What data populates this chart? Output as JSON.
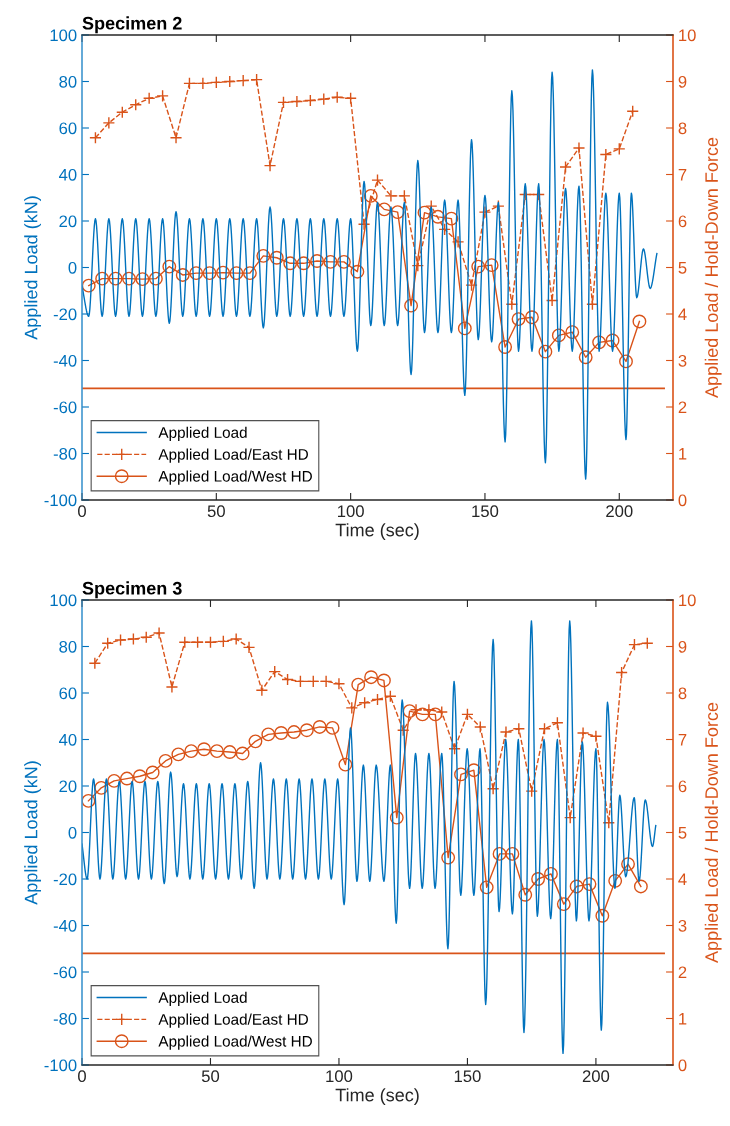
{
  "chart_data": [
    {
      "type": "line",
      "title": "Specimen 2",
      "xlabel": "Time (sec)",
      "ylabel": "Applied Load (kN)",
      "y2label": "Applied Load / Hold-Down Force",
      "xlim": [
        0,
        220
      ],
      "xticks": [
        0,
        50,
        100,
        150,
        200
      ],
      "ylim": [
        -100,
        100
      ],
      "yticks": [
        -100,
        -80,
        -60,
        -40,
        -20,
        0,
        20,
        40,
        60,
        80,
        100
      ],
      "y2lim": [
        0,
        10
      ],
      "y2ticks": [
        0,
        1,
        2,
        3,
        4,
        5,
        6,
        7,
        8,
        9,
        10
      ],
      "grid": false,
      "legend": "bottom left",
      "ref_lines": [
        {
          "axis": "y2",
          "value": 2.4,
          "color": "#d95319"
        }
      ],
      "series": [
        {
          "name": "Applied Load",
          "color": "#0072bd",
          "marker": "none",
          "line_style": "solid",
          "x": [
            0,
            2.5,
            5,
            7.5,
            10,
            12.5,
            15,
            17.5,
            20,
            22.5,
            25,
            27.5,
            30,
            32.5,
            35,
            37.5,
            40,
            42.5,
            45,
            47.5,
            50,
            52.5,
            55,
            57.5,
            60,
            62.5,
            65,
            67.5,
            70,
            72.5,
            75,
            77.5,
            80,
            82.5,
            85,
            87.5,
            90,
            92.5,
            95,
            97.5,
            100,
            102.5,
            105,
            107.5,
            110,
            112.5,
            115,
            117.5,
            120,
            122.5,
            125,
            127.5,
            130,
            132.5,
            135,
            137.5,
            140,
            142.5,
            145,
            147.5,
            150,
            152.5,
            155,
            157.5,
            160,
            162.5,
            165,
            167.5,
            170,
            172.5,
            175,
            177.5,
            180,
            182.5,
            185,
            187.5,
            190,
            192.5,
            195,
            197.5,
            200,
            202.5,
            204.5,
            206.5,
            209,
            211.5,
            214
          ],
          "values": [
            -8,
            -21,
            21,
            -21,
            21,
            -21,
            21,
            -21,
            21,
            -21,
            21,
            -21,
            21,
            -24,
            24,
            -21,
            21,
            -21,
            21,
            -21,
            21,
            -21,
            21,
            -21,
            21,
            -21,
            21,
            -26,
            26,
            -21,
            21,
            -21,
            21,
            -21,
            21,
            -21,
            21,
            -21,
            21,
            -21,
            21,
            -36,
            37,
            -25,
            28,
            -25,
            26,
            -25,
            28,
            -46,
            46,
            -28,
            26,
            -28,
            29,
            -28,
            29,
            -55,
            55,
            -31,
            31,
            -32,
            28,
            -75,
            76,
            -36,
            36,
            -36,
            36,
            -84,
            84,
            -36,
            34,
            -36,
            35,
            -91,
            85,
            -36,
            32,
            -36,
            32,
            -74,
            32,
            -13,
            8,
            -9,
            6
          ]
        },
        {
          "name": "Applied Load/East HD",
          "color": "#d95319",
          "axis": "y2",
          "marker": "cross",
          "line_style": "dashed",
          "x": [
            5,
            10,
            15,
            20,
            25,
            30,
            35,
            40,
            45,
            50,
            55,
            60,
            65,
            70,
            75,
            80,
            85,
            90,
            95,
            100,
            105,
            110,
            115,
            120,
            125,
            130,
            135,
            140,
            145,
            150,
            155,
            160,
            165,
            170,
            175,
            180,
            185,
            190,
            195,
            200,
            205
          ],
          "values": [
            7.79,
            8.11,
            8.34,
            8.5,
            8.64,
            8.69,
            7.79,
            8.96,
            8.96,
            8.98,
            9.0,
            9.02,
            9.04,
            7.19,
            8.55,
            8.57,
            8.59,
            8.62,
            8.66,
            8.64,
            5.93,
            6.88,
            6.54,
            6.54,
            5.04,
            6.32,
            5.82,
            5.55,
            4.62,
            6.19,
            6.32,
            4.21,
            6.57,
            6.57,
            4.29,
            7.16,
            7.57,
            4.21,
            7.43,
            7.55,
            8.36
          ]
        },
        {
          "name": "Applied Load/West HD",
          "color": "#d95319",
          "axis": "y2",
          "marker": "circle",
          "line_style": "solid",
          "x": [
            2.5,
            7.5,
            12.5,
            17.5,
            22.5,
            27.5,
            32.5,
            37.5,
            42.5,
            47.5,
            52.5,
            57.5,
            62.5,
            67.5,
            72.5,
            77.5,
            82.5,
            87.5,
            92.5,
            97.5,
            102.5,
            107.5,
            112.5,
            117.5,
            122.5,
            127.5,
            132.5,
            137.5,
            142.5,
            147.5,
            152.5,
            157.5,
            162.5,
            167.5,
            172.5,
            177.5,
            182.5,
            187.5,
            192.5,
            197.5,
            202.5,
            207.5
          ],
          "values": [
            4.61,
            4.76,
            4.76,
            4.76,
            4.75,
            4.76,
            5.02,
            4.84,
            4.88,
            4.88,
            4.89,
            4.88,
            4.88,
            5.25,
            5.21,
            5.09,
            5.09,
            5.14,
            5.12,
            5.12,
            4.91,
            6.54,
            6.25,
            6.19,
            4.18,
            6.18,
            6.09,
            6.05,
            3.69,
            5.02,
            5.05,
            3.29,
            3.89,
            3.93,
            3.19,
            3.54,
            3.61,
            3.07,
            3.39,
            3.43,
            2.98,
            3.84
          ]
        }
      ]
    },
    {
      "type": "line",
      "title": "Specimen 3",
      "xlabel": "Time (sec)",
      "ylabel": "Applied Load (kN)",
      "y2label": "Applied Load / Hold-Down Force",
      "xlim": [
        0,
        230
      ],
      "xticks": [
        0,
        50,
        100,
        150,
        200
      ],
      "ylim": [
        -100,
        100
      ],
      "yticks": [
        -100,
        -80,
        -60,
        -40,
        -20,
        0,
        20,
        40,
        60,
        80,
        100
      ],
      "y2lim": [
        0,
        10
      ],
      "y2ticks": [
        0,
        1,
        2,
        3,
        4,
        5,
        6,
        7,
        8,
        9,
        10
      ],
      "grid": false,
      "legend": "bottom left",
      "ref_lines": [
        {
          "axis": "y2",
          "value": 2.4,
          "color": "#d95319"
        }
      ],
      "series": [
        {
          "name": "Applied Load",
          "color": "#0072bd",
          "marker": "none",
          "line_style": "solid",
          "x": [
            0,
            2,
            4.5,
            7,
            9.5,
            12,
            14.5,
            17,
            19.5,
            22,
            24.5,
            27,
            29.5,
            32,
            34.5,
            37,
            39.5,
            42,
            44.5,
            47,
            49.5,
            52,
            54.5,
            57,
            59.5,
            62,
            64.5,
            67,
            69.5,
            72,
            74.5,
            77,
            79.5,
            82,
            84.5,
            87,
            89.5,
            92,
            94.5,
            97,
            99.5,
            102,
            104.5,
            107,
            109.5,
            112,
            114.5,
            117.5,
            120,
            122.3,
            124.6,
            127.5,
            129.8,
            132.4,
            135,
            137.4,
            140,
            142.4,
            144.8,
            147.4,
            149.9,
            152.5,
            154.9,
            157.1,
            160,
            162.3,
            164.9,
            167.5,
            169.8,
            172,
            174.9,
            177.2,
            179.8,
            182.4,
            185,
            187.2,
            189.8,
            192.4,
            194.7,
            197.3,
            200,
            202.1,
            204.5,
            207.4,
            209.3,
            211.6,
            214.9,
            216.8,
            219.2,
            222,
            223.3
          ],
          "values": [
            -5,
            -20,
            23,
            -20,
            23,
            -20,
            22,
            -20,
            22,
            -20,
            22,
            -20,
            22,
            -22,
            26,
            -19,
            21,
            -20,
            21,
            -20,
            21,
            -20,
            21,
            -20,
            21,
            -20,
            22,
            -24,
            30,
            -20,
            23,
            -20,
            23,
            -20,
            23,
            -20,
            23,
            -20,
            23,
            -20,
            23,
            -31,
            45,
            -21,
            29,
            -21,
            29,
            -21,
            29,
            -39,
            57,
            -24,
            34,
            -24,
            34,
            -24,
            34,
            -50,
            65,
            -27,
            36,
            -27,
            36,
            -74,
            83,
            -34,
            40,
            -35,
            40,
            -86,
            91,
            -36,
            40,
            -37,
            40,
            -95,
            91,
            -38,
            39,
            -38,
            36,
            -85,
            56,
            -24,
            16,
            -19,
            15,
            -21,
            14,
            -6,
            3
          ]
        },
        {
          "name": "Applied Load/East HD",
          "color": "#d95319",
          "axis": "y2",
          "marker": "cross",
          "line_style": "dashed",
          "x": [
            5,
            10,
            15,
            20,
            25,
            30,
            35,
            40,
            45,
            50,
            55,
            60,
            65,
            70,
            75,
            80,
            85,
            90,
            95,
            100,
            105,
            110,
            115,
            120,
            125,
            130,
            135,
            140,
            145,
            150,
            155,
            160,
            165,
            170,
            175,
            180,
            185,
            190,
            195,
            200,
            205,
            210,
            215,
            220
          ],
          "values": [
            8.64,
            9.07,
            9.14,
            9.16,
            9.2,
            9.29,
            8.13,
            9.09,
            9.09,
            9.09,
            9.11,
            9.16,
            8.98,
            8.06,
            8.46,
            8.29,
            8.25,
            8.25,
            8.25,
            8.2,
            7.68,
            7.79,
            7.86,
            7.93,
            7.2,
            7.64,
            7.64,
            7.59,
            6.8,
            7.54,
            7.27,
            5.94,
            7.16,
            7.23,
            5.89,
            7.23,
            7.36,
            5.32,
            7.14,
            7.07,
            5.21,
            8.44,
            9.04,
            9.07
          ]
        },
        {
          "name": "Applied Load/West HD",
          "color": "#d95319",
          "axis": "y2",
          "marker": "circle",
          "line_style": "solid",
          "x": [
            2.5,
            7.5,
            12.5,
            17.5,
            22.5,
            27.5,
            32.5,
            37.5,
            42.5,
            47.5,
            52.5,
            57.5,
            62.5,
            67.5,
            72.5,
            77.5,
            82.5,
            87.5,
            92.5,
            97.5,
            102.5,
            107.5,
            112.5,
            117.5,
            122.5,
            127.5,
            132.5,
            137.5,
            142.5,
            147.5,
            152.5,
            157.5,
            162.5,
            167.5,
            172.5,
            177.5,
            182.5,
            187.5,
            192.5,
            197.5,
            202.5,
            207.5,
            212.5,
            217.5
          ],
          "values": [
            5.68,
            5.96,
            6.11,
            6.16,
            6.21,
            6.29,
            6.54,
            6.68,
            6.75,
            6.79,
            6.75,
            6.73,
            6.7,
            6.96,
            7.11,
            7.14,
            7.16,
            7.2,
            7.27,
            7.25,
            6.46,
            8.18,
            8.34,
            8.27,
            5.32,
            7.61,
            7.54,
            7.54,
            4.46,
            6.25,
            6.34,
            3.82,
            4.54,
            4.54,
            3.66,
            4.0,
            4.11,
            3.46,
            3.84,
            3.89,
            3.21,
            3.96,
            4.32,
            3.84
          ]
        }
      ]
    }
  ]
}
